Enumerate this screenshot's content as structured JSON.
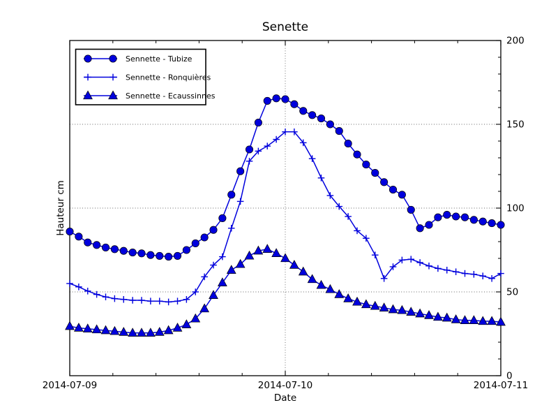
{
  "window": {
    "background": "#ffffff"
  },
  "title": "Senette",
  "axes": {
    "xlabel": "Date",
    "ylabel": "Hauteur cm",
    "x_tick_labels": [
      "2014-07-09",
      "2014-07-10",
      "2014-07-11"
    ],
    "y_tick_labels": [
      "0",
      "50",
      "100",
      "150",
      "200"
    ]
  },
  "colors": {
    "series_blue": "#0000dd",
    "marker_edge": "#000000",
    "grid": "#666666",
    "axis": "#000000",
    "legend_border": "#000000",
    "background": "#ffffff"
  },
  "legend": {
    "position": "upper left",
    "labels": [
      "Sennette - Tubize",
      "Sennette - Ronquières",
      "Sennette - Ecaussinnes"
    ]
  },
  "chart_data": {
    "type": "line",
    "title": "Senette",
    "xlabel": "Date",
    "ylabel": "Hauteur cm",
    "x_unit": "hours since 2014-07-09 00:00",
    "xlim": [
      0,
      48
    ],
    "ylim": [
      0,
      200
    ],
    "grid": true,
    "legend_position": "upper left",
    "x_ticks": [
      {
        "pos": 0,
        "label": "2014-07-09"
      },
      {
        "pos": 24,
        "label": "2014-07-10"
      },
      {
        "pos": 48,
        "label": "2014-07-11"
      }
    ],
    "y_ticks": [
      0,
      50,
      100,
      150,
      200
    ],
    "x_minor_step_hours": 4.8,
    "y_minor_step": 10,
    "x": [
      0,
      1,
      2,
      3,
      4,
      5,
      6,
      7,
      8,
      9,
      10,
      11,
      12,
      13,
      14,
      15,
      16,
      17,
      18,
      19,
      20,
      21,
      22,
      23,
      24,
      25,
      26,
      27,
      28,
      29,
      30,
      31,
      32,
      33,
      34,
      35,
      36,
      37,
      38,
      39,
      40,
      41,
      42,
      43,
      44,
      45,
      46,
      47,
      48
    ],
    "series": [
      {
        "name": "Sennette - Tubize",
        "marker": "circle",
        "color": "#0000dd",
        "values": [
          86,
          83,
          79.5,
          78,
          76.5,
          75.5,
          74.5,
          73.5,
          73,
          72,
          71.5,
          71,
          71.5,
          75,
          79,
          82.5,
          87,
          94,
          108,
          122,
          135,
          151,
          164,
          165.5,
          165,
          162,
          158,
          155.5,
          153.5,
          150,
          146,
          138.5,
          132,
          126,
          121,
          115.5,
          111,
          108,
          99,
          88,
          90,
          94.5,
          96,
          95,
          94.5,
          93,
          92,
          91,
          90
        ]
      },
      {
        "name": "Sennette - Ronquières",
        "marker": "plus",
        "color": "#0000dd",
        "values": [
          55,
          53,
          50.5,
          48.5,
          47,
          46,
          45.5,
          45,
          45,
          44.5,
          44.5,
          44,
          44.5,
          45.5,
          50,
          59,
          66,
          71,
          88,
          104,
          128,
          134,
          137,
          141,
          145.5,
          145.5,
          139,
          129.5,
          118,
          107.5,
          101,
          95,
          86.5,
          82,
          72,
          58,
          65,
          69,
          69.5,
          67.5,
          65.5,
          64,
          63,
          62,
          61,
          60.5,
          59.5,
          58,
          61
        ]
      },
      {
        "name": "Sennette - Ecaussinnes",
        "marker": "triangle",
        "color": "#0000dd",
        "values": [
          29.5,
          28.5,
          28,
          27.5,
          27,
          26.5,
          26,
          25.5,
          25.5,
          25.5,
          26,
          27,
          28.5,
          30.5,
          34,
          40,
          48,
          55.5,
          63,
          66.5,
          71.5,
          74.5,
          75.5,
          73,
          70,
          66,
          62,
          57.5,
          54,
          51.5,
          48.5,
          46,
          44,
          42.5,
          41.5,
          40.5,
          39.5,
          39,
          38,
          37,
          36,
          35,
          34.5,
          33.5,
          33,
          33,
          32.5,
          32.5,
          32
        ]
      }
    ]
  }
}
